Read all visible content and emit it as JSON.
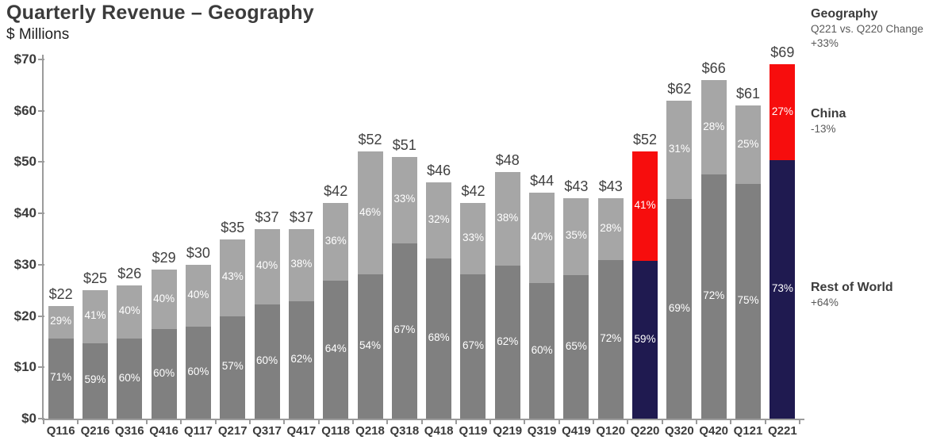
{
  "title": "Quarterly Revenue – Geography",
  "subtitle": "$ Millions",
  "legend": {
    "heading": "Geography",
    "subheading": "Q221 vs. Q220 Change",
    "total_change": "+33%",
    "china_label": "China",
    "china_change": "-13%",
    "rest_of_world_label": "Rest of World",
    "rest_of_world_change": "+64%"
  },
  "colors": {
    "rest_of_world": "#808080",
    "china": "#a6a6a6",
    "rest_of_world_highlight": "#1f1a50",
    "china_highlight": "#f70d0d",
    "axis": "#9b9b9b",
    "text_dark": "#3b3b3b"
  },
  "chart_data": {
    "type": "bar",
    "stacked": true,
    "title": "Quarterly Revenue – Geography",
    "ylabel": "$ Millions",
    "ylim": [
      0,
      70
    ],
    "ytick_interval": 10,
    "ytick_labels": [
      "$0",
      "$10",
      "$20",
      "$30",
      "$40",
      "$50",
      "$60",
      "$70"
    ],
    "grid": false,
    "legend_position": "right",
    "categories": [
      "Q116",
      "Q216",
      "Q316",
      "Q416",
      "Q117",
      "Q217",
      "Q317",
      "Q417",
      "Q118",
      "Q218",
      "Q318",
      "Q418",
      "Q119",
      "Q219",
      "Q319",
      "Q419",
      "Q120",
      "Q220",
      "Q320",
      "Q420",
      "Q121",
      "Q221"
    ],
    "totals": [
      22,
      25,
      26,
      29,
      30,
      35,
      37,
      37,
      42,
      52,
      51,
      46,
      42,
      48,
      44,
      43,
      43,
      52,
      62,
      66,
      61,
      69
    ],
    "totals_labels": [
      "$22",
      "$25",
      "$26",
      "$29",
      "$30",
      "$35",
      "$37",
      "$37",
      "$42",
      "$52",
      "$51",
      "$46",
      "$42",
      "$48",
      "$44",
      "$43",
      "$43",
      "$52",
      "$62",
      "$66",
      "$61",
      "$69"
    ],
    "series": [
      {
        "name": "Rest of World",
        "pct": [
          71,
          59,
          60,
          60,
          60,
          57,
          60,
          62,
          64,
          54,
          67,
          68,
          67,
          62,
          60,
          65,
          72,
          59,
          69,
          72,
          75,
          73
        ],
        "labels": [
          "71%",
          "59%",
          "60%",
          "60%",
          "60%",
          "57%",
          "60%",
          "62%",
          "64%",
          "54%",
          "67%",
          "68%",
          "67%",
          "62%",
          "60%",
          "65%",
          "72%",
          "59%",
          "69%",
          "72%",
          "75%",
          "73%"
        ]
      },
      {
        "name": "China",
        "pct": [
          29,
          41,
          40,
          40,
          40,
          43,
          40,
          38,
          36,
          46,
          33,
          32,
          33,
          38,
          40,
          35,
          28,
          41,
          31,
          28,
          25,
          27
        ],
        "labels": [
          "29%",
          "41%",
          "40%",
          "40%",
          "40%",
          "43%",
          "40%",
          "38%",
          "36%",
          "46%",
          "33%",
          "32%",
          "33%",
          "38%",
          "40%",
          "35%",
          "28%",
          "41%",
          "31%",
          "28%",
          "25%",
          "27%"
        ]
      }
    ],
    "highlight_categories": [
      "Q220",
      "Q221"
    ]
  }
}
